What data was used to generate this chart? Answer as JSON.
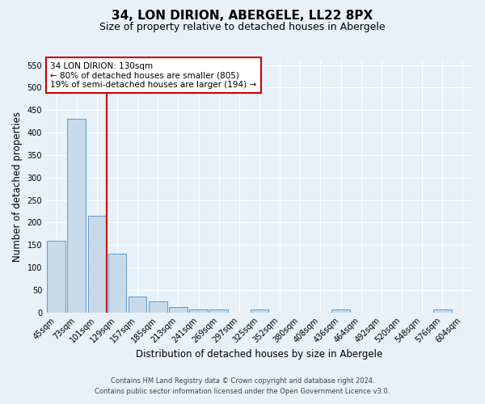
{
  "title": "34, LON DIRION, ABERGELE, LL22 8PX",
  "subtitle": "Size of property relative to detached houses in Abergele",
  "xlabel": "Distribution of detached houses by size in Abergele",
  "ylabel": "Number of detached properties",
  "bar_labels": [
    "45sqm",
    "73sqm",
    "101sqm",
    "129sqm",
    "157sqm",
    "185sqm",
    "213sqm",
    "241sqm",
    "269sqm",
    "297sqm",
    "325sqm",
    "352sqm",
    "380sqm",
    "408sqm",
    "436sqm",
    "464sqm",
    "492sqm",
    "520sqm",
    "548sqm",
    "576sqm",
    "604sqm"
  ],
  "bar_values": [
    160,
    430,
    215,
    130,
    35,
    25,
    12,
    7,
    7,
    0,
    7,
    0,
    0,
    0,
    7,
    0,
    0,
    0,
    0,
    7,
    0
  ],
  "bar_color": "#c8d9e8",
  "bar_edge_color": "#5b9bd5",
  "annotation_line1": "34 LON DIRION: 130sqm",
  "annotation_line2": "← 80% of detached houses are smaller (805)",
  "annotation_line3": "19% of semi-detached houses are larger (194) →",
  "vline_color": "#cc0000",
  "annotation_box_facecolor": "#ffffff",
  "annotation_box_edgecolor": "#cc0000",
  "ylim": [
    0,
    560
  ],
  "yticks": [
    0,
    50,
    100,
    150,
    200,
    250,
    300,
    350,
    400,
    450,
    500,
    550
  ],
  "footer_line1": "Contains HM Land Registry data © Crown copyright and database right 2024.",
  "footer_line2": "Contains public sector information licensed under the Open Government Licence v3.0.",
  "bg_color": "#e8f0f8",
  "grid_color": "#ffffff",
  "title_fontsize": 11,
  "subtitle_fontsize": 9,
  "tick_fontsize": 7,
  "ylabel_fontsize": 8.5,
  "xlabel_fontsize": 8.5,
  "annotation_fontsize": 7.5,
  "footer_fontsize": 6,
  "vline_x": 2.5
}
